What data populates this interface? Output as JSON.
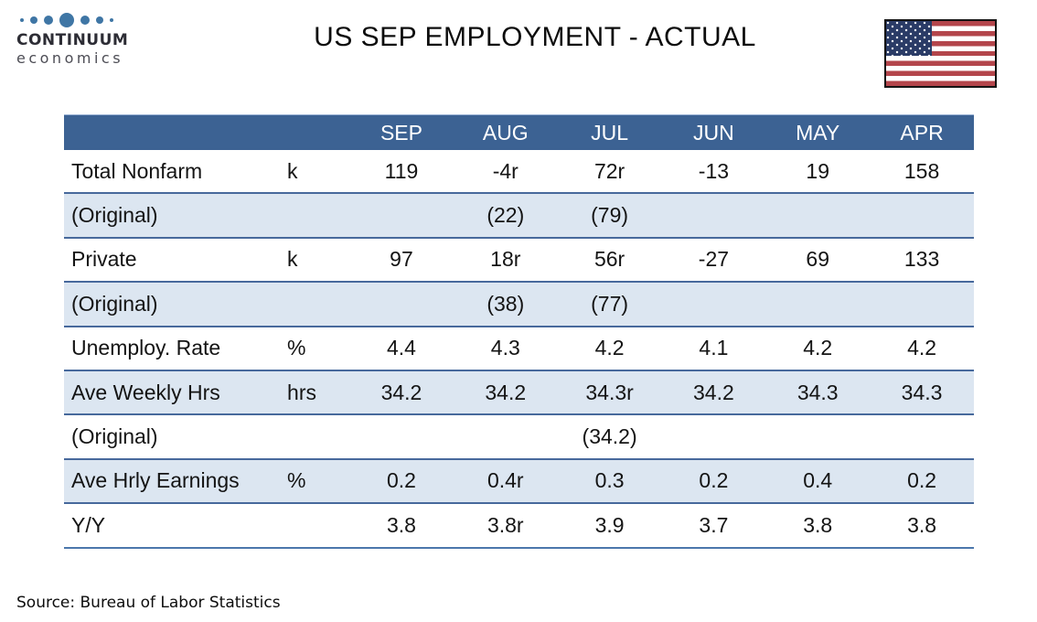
{
  "logo": {
    "name": "CONTINUUM",
    "subname": "economics",
    "dot_color": "#3F76A5"
  },
  "title": "US SEP EMPLOYMENT - ACTUAL",
  "flag": {
    "icon": "us-flag-icon",
    "red": "#B3454B",
    "blue": "#2A3B66"
  },
  "colors": {
    "table_header_bg": "#3C6293",
    "table_alt_row_bg": "#DCE6F1",
    "table_row_border": "#47699C",
    "header_text": "#FFFFFF"
  },
  "chart_data": {
    "type": "table",
    "title": "US SEP EMPLOYMENT - ACTUAL",
    "columns": [
      "",
      "",
      "SEP",
      "AUG",
      "JUL",
      "JUN",
      "MAY",
      "APR"
    ],
    "rows": [
      [
        "Total Nonfarm",
        "k",
        "119",
        "-4r",
        "72r",
        "-13",
        "19",
        "158"
      ],
      [
        "(Original)",
        "",
        "",
        "(22)",
        "(79)",
        "",
        "",
        ""
      ],
      [
        "Private",
        "k",
        "97",
        "18r",
        "56r",
        "-27",
        "69",
        "133"
      ],
      [
        "(Original)",
        "",
        "",
        "(38)",
        "(77)",
        "",
        "",
        ""
      ],
      [
        "Unemploy. Rate",
        "%",
        "4.4",
        "4.3",
        "4.2",
        "4.1",
        "4.2",
        "4.2"
      ],
      [
        "Ave Weekly Hrs",
        "hrs",
        "34.2",
        "34.2",
        "34.3r",
        "34.2",
        "34.3",
        "34.3"
      ],
      [
        "(Original)",
        "",
        "",
        "",
        "(34.2)",
        "",
        "",
        ""
      ],
      [
        "Ave Hrly Earnings",
        "%",
        "0.2",
        "0.4r",
        "0.3",
        "0.2",
        "0.4",
        "0.2"
      ],
      [
        "Y/Y",
        "",
        "3.8",
        "3.8r",
        "3.9",
        "3.7",
        "3.8",
        "3.8"
      ]
    ],
    "source": "Source: Bureau of Labor Statistics",
    "layout_hints": {
      "grid": "horizontal-only",
      "alt_rows": "even rows shaded"
    }
  },
  "footer": {
    "source": "Source: Bureau of Labor Statistics"
  }
}
